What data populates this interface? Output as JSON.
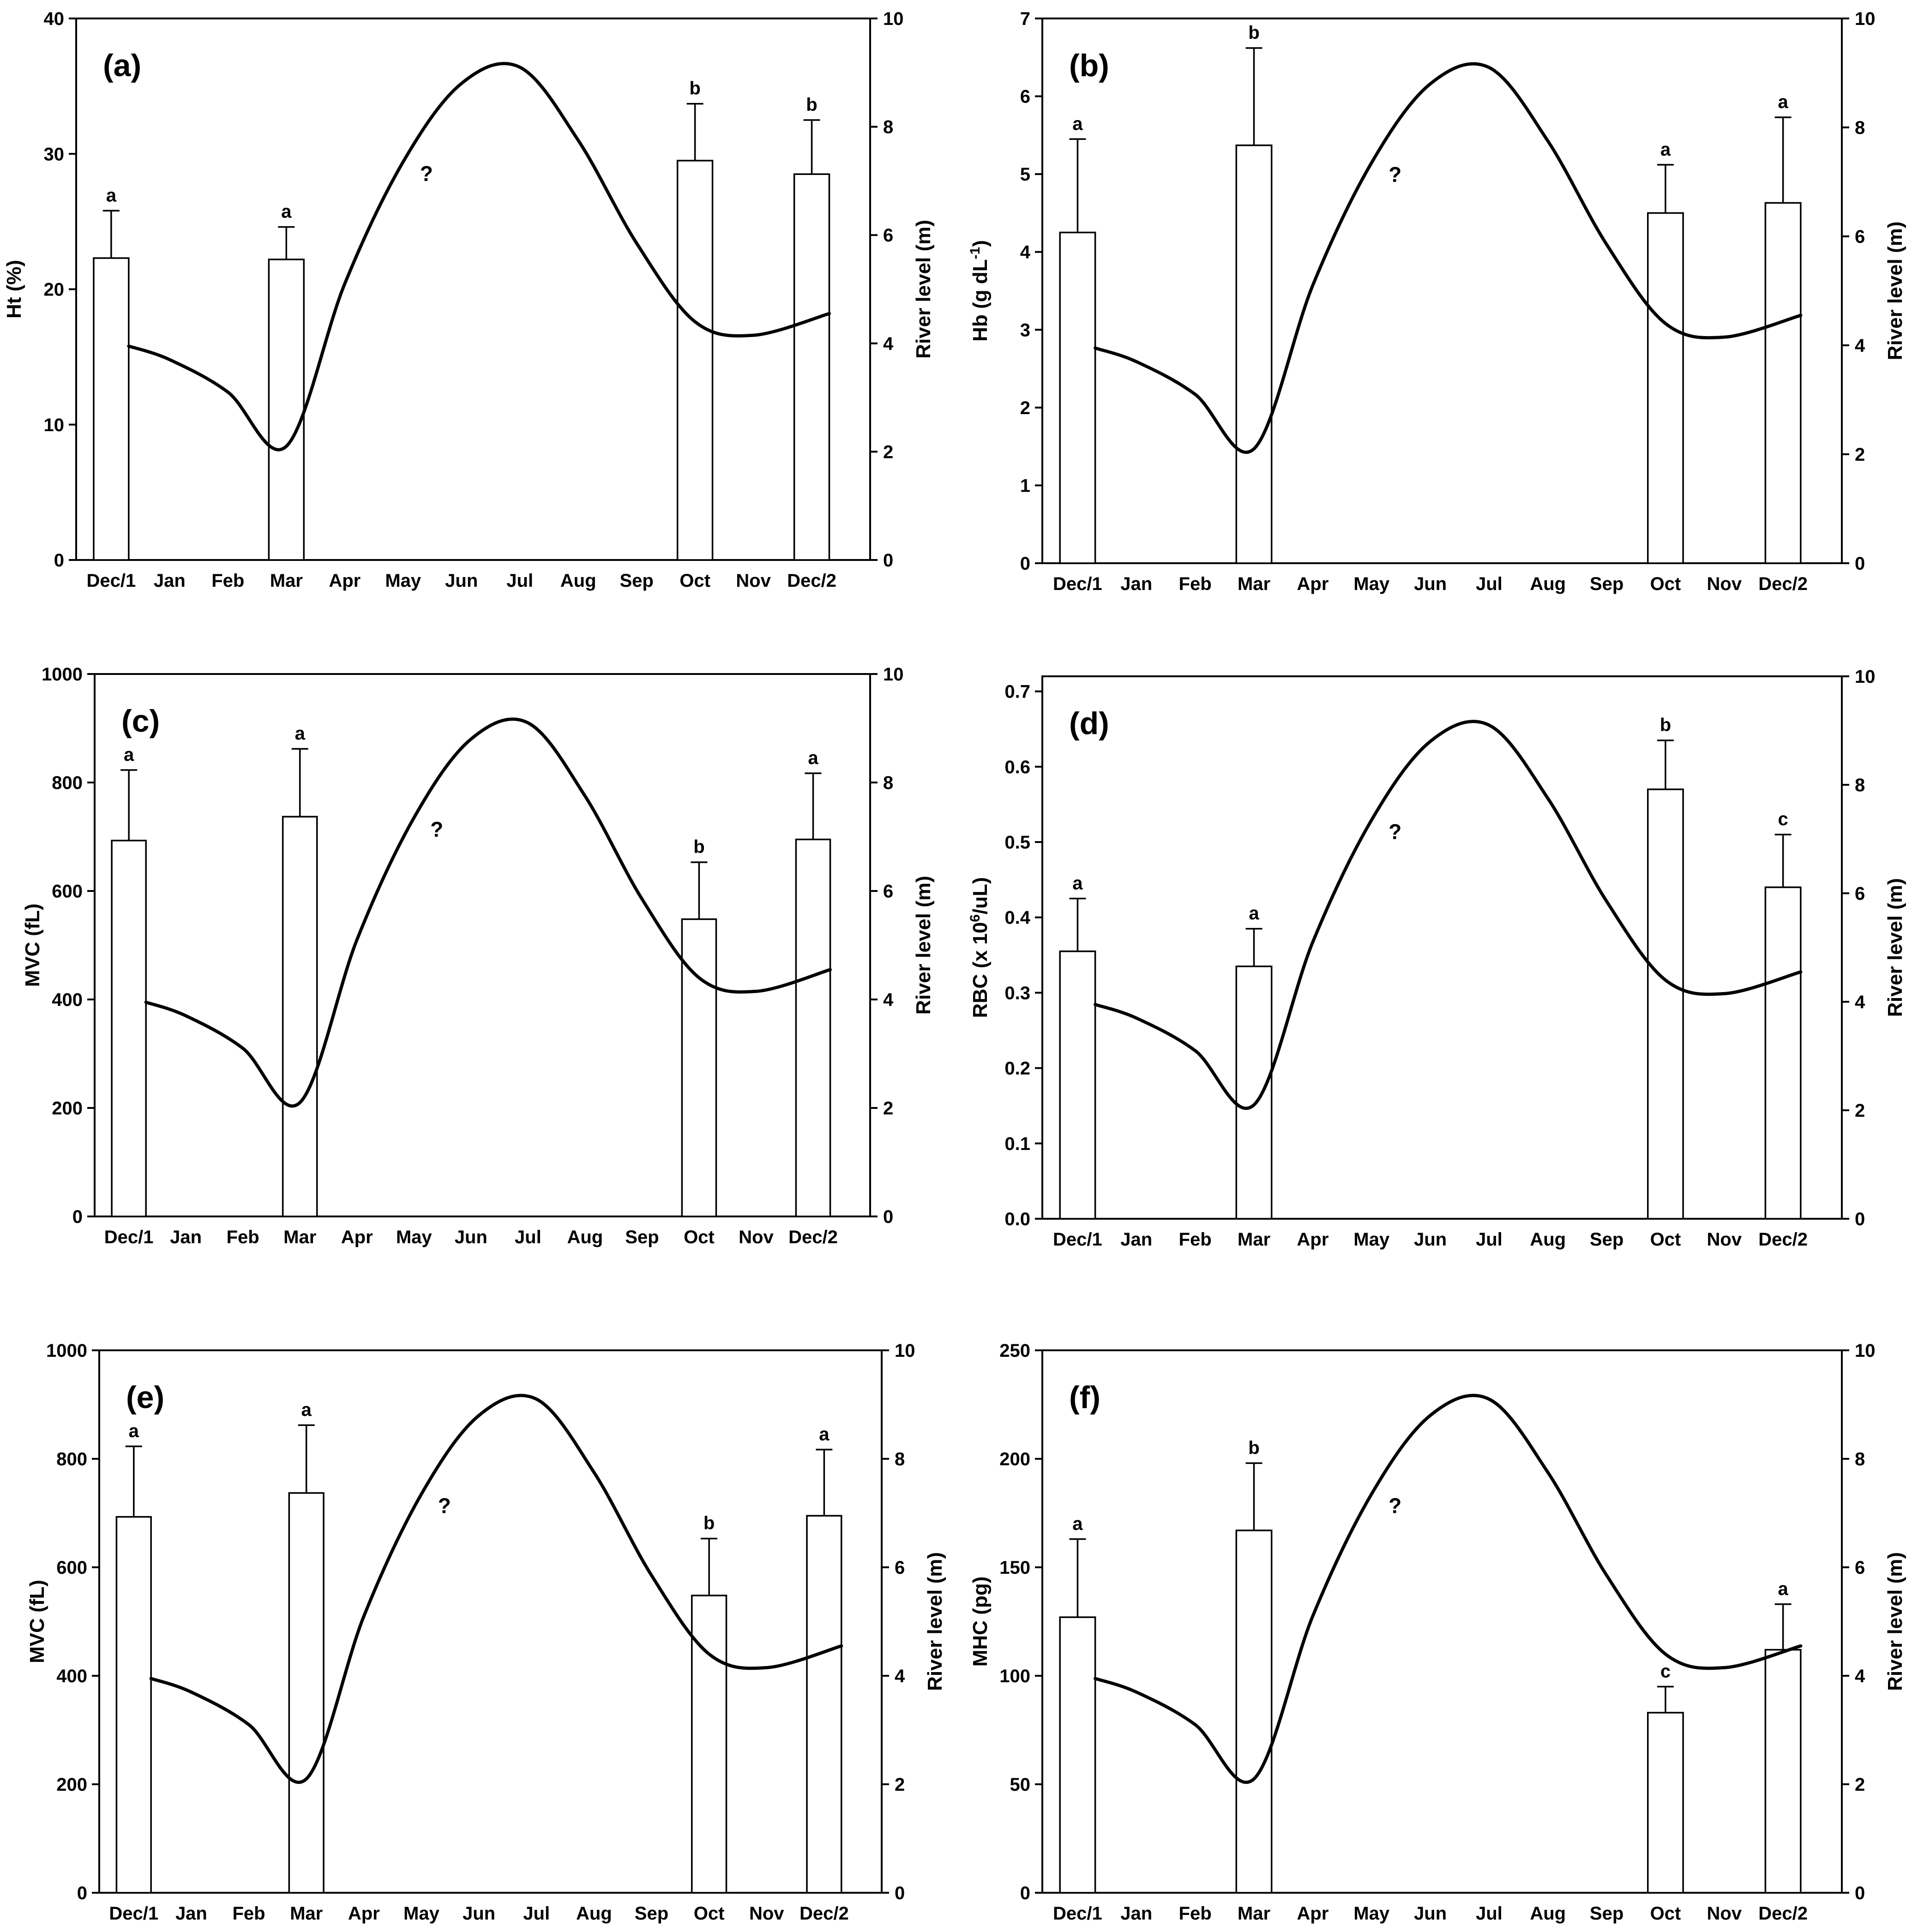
{
  "chart_data": [
    {
      "type": "bar",
      "panel_label": "(a)",
      "categories": [
        "Dec/1",
        "Jan",
        "Feb",
        "Mar",
        "Apr",
        "May",
        "Jun",
        "Jul",
        "Aug",
        "Sep",
        "Oct",
        "Nov",
        "Dec/2"
      ],
      "ylabel": "Ht (%)",
      "ylabel_sup": "",
      "ylabel_suffix": "",
      "ylim": [
        0,
        40
      ],
      "yticks": [
        0,
        10,
        20,
        30,
        40
      ],
      "ytick_labels": [
        "0",
        "10",
        "20",
        "30",
        "40"
      ],
      "y2label": "River level (m)",
      "y2lim": [
        0,
        10
      ],
      "y2ticks": [
        0,
        2,
        4,
        6,
        8,
        10
      ],
      "bars": [
        {
          "month": "Dec/1",
          "value": 22.3,
          "error": 3.5,
          "letter": "a"
        },
        {
          "month": "Mar",
          "value": 22.2,
          "error": 2.4,
          "letter": "a"
        },
        {
          "month": "Oct",
          "value": 29.5,
          "error": 4.2,
          "letter": "b"
        },
        {
          "month": "Dec/2",
          "value": 28.5,
          "error": 4.0,
          "letter": "b"
        }
      ],
      "river_level": {
        "x": [
          0.3,
          1,
          2,
          3,
          4,
          5,
          6,
          7,
          8,
          9,
          10,
          11,
          12.3
        ],
        "y": [
          3.95,
          3.7,
          3.1,
          2.1,
          5.1,
          7.35,
          8.8,
          9.1,
          7.75,
          5.85,
          4.4,
          4.15,
          4.55
        ]
      },
      "annotation": {
        "text": "?",
        "month_index": 5.4,
        "level": 7.0
      }
    },
    {
      "type": "bar",
      "panel_label": "(b)",
      "categories": [
        "Dec/1",
        "Jan",
        "Feb",
        "Mar",
        "Apr",
        "May",
        "Jun",
        "Jul",
        "Aug",
        "Sep",
        "Oct",
        "Nov",
        "Dec/2"
      ],
      "ylabel": "Hb (g dL",
      "ylabel_sup": "-1",
      "ylabel_suffix": ")",
      "ylim": [
        0,
        7
      ],
      "yticks": [
        0,
        1,
        2,
        3,
        4,
        5,
        6,
        7
      ],
      "ytick_labels": [
        "0",
        "1",
        "2",
        "3",
        "4",
        "5",
        "6",
        "7"
      ],
      "y2label": "River level (m)",
      "y2lim": [
        0,
        10
      ],
      "y2ticks": [
        0,
        2,
        4,
        6,
        8,
        10
      ],
      "bars": [
        {
          "month": "Dec/1",
          "value": 4.25,
          "error": 1.2,
          "letter": "a"
        },
        {
          "month": "Mar",
          "value": 5.37,
          "error": 1.25,
          "letter": "b"
        },
        {
          "month": "Oct",
          "value": 4.5,
          "error": 0.62,
          "letter": "a"
        },
        {
          "month": "Dec/2",
          "value": 4.63,
          "error": 1.1,
          "letter": "a"
        }
      ],
      "river_level": {
        "x": [
          0.3,
          1,
          2,
          3,
          4,
          5,
          6,
          7,
          8,
          9,
          10,
          11,
          12.3
        ],
        "y": [
          3.95,
          3.7,
          3.1,
          2.1,
          5.1,
          7.35,
          8.8,
          9.1,
          7.75,
          5.85,
          4.4,
          4.15,
          4.55
        ]
      },
      "annotation": {
        "text": "?",
        "month_index": 5.4,
        "level": 7.0
      }
    },
    {
      "type": "bar",
      "panel_label": "(c)",
      "categories": [
        "Dec/1",
        "Jan",
        "Feb",
        "Mar",
        "Apr",
        "May",
        "Jun",
        "Jul",
        "Aug",
        "Sep",
        "Oct",
        "Nov",
        "Dec/2"
      ],
      "ylabel": "MVC (fL)",
      "ylabel_sup": "",
      "ylabel_suffix": "",
      "ylim": [
        0,
        1000
      ],
      "yticks": [
        0,
        200,
        400,
        600,
        800,
        1000
      ],
      "ytick_labels": [
        "0",
        "200",
        "400",
        "600",
        "800",
        "1000"
      ],
      "y2label": "River level (m)",
      "y2lim": [
        0,
        10
      ],
      "y2ticks": [
        0,
        2,
        4,
        6,
        8,
        10
      ],
      "bars": [
        {
          "month": "Dec/1",
          "value": 693,
          "error": 130,
          "letter": "a"
        },
        {
          "month": "Mar",
          "value": 737,
          "error": 125,
          "letter": "a"
        },
        {
          "month": "Oct",
          "value": 548,
          "error": 105,
          "letter": "b"
        },
        {
          "month": "Dec/2",
          "value": 695,
          "error": 122,
          "letter": "a"
        }
      ],
      "river_level": {
        "x": [
          0.3,
          1,
          2,
          3,
          4,
          5,
          6,
          7,
          8,
          9,
          10,
          11,
          12.3
        ],
        "y": [
          3.95,
          3.7,
          3.1,
          2.1,
          5.1,
          7.35,
          8.8,
          9.1,
          7.75,
          5.85,
          4.4,
          4.15,
          4.55
        ]
      },
      "annotation": {
        "text": "?",
        "month_index": 5.4,
        "level": 7.0
      }
    },
    {
      "type": "bar",
      "panel_label": "(d)",
      "categories": [
        "Dec/1",
        "Jan",
        "Feb",
        "Mar",
        "Apr",
        "May",
        "Jun",
        "Jul",
        "Aug",
        "Sep",
        "Oct",
        "Nov",
        "Dec/2"
      ],
      "ylabel": "RBC (x 10",
      "ylabel_sup": "6",
      "ylabel_suffix": "/uL)",
      "ylim": [
        0,
        0.72
      ],
      "yticks": [
        0,
        0.1,
        0.2,
        0.3,
        0.4,
        0.5,
        0.6,
        0.7
      ],
      "ytick_labels": [
        "0.0",
        "0.1",
        "0.2",
        "0.3",
        "0.4",
        "0.5",
        "0.6",
        "0.7"
      ],
      "y2label": "River level (m)",
      "y2lim": [
        0,
        10
      ],
      "y2ticks": [
        0,
        2,
        4,
        6,
        8,
        10
      ],
      "bars": [
        {
          "month": "Dec/1",
          "value": 0.355,
          "error": 0.07,
          "letter": "a"
        },
        {
          "month": "Mar",
          "value": 0.335,
          "error": 0.05,
          "letter": "a"
        },
        {
          "month": "Oct",
          "value": 0.57,
          "error": 0.065,
          "letter": "b"
        },
        {
          "month": "Dec/2",
          "value": 0.44,
          "error": 0.07,
          "letter": "c"
        }
      ],
      "river_level": {
        "x": [
          0.3,
          1,
          2,
          3,
          4,
          5,
          6,
          7,
          8,
          9,
          10,
          11,
          12.3
        ],
        "y": [
          3.95,
          3.7,
          3.1,
          2.1,
          5.1,
          7.35,
          8.8,
          9.1,
          7.75,
          5.85,
          4.4,
          4.15,
          4.55
        ]
      },
      "annotation": {
        "text": "?",
        "month_index": 5.4,
        "level": 7.0
      }
    },
    {
      "type": "bar",
      "panel_label": "(e)",
      "categories": [
        "Dec/1",
        "Jan",
        "Feb",
        "Mar",
        "Apr",
        "May",
        "Jun",
        "Jul",
        "Aug",
        "Sep",
        "Oct",
        "Nov",
        "Dec/2"
      ],
      "ylabel": "MVC (fL)",
      "ylabel_sup": "",
      "ylabel_suffix": "",
      "ylim": [
        0,
        1000
      ],
      "yticks": [
        0,
        200,
        400,
        600,
        800,
        1000
      ],
      "ytick_labels": [
        "0",
        "200",
        "400",
        "600",
        "800",
        "1000"
      ],
      "y2label": "River level (m)",
      "y2lim": [
        0,
        10
      ],
      "y2ticks": [
        0,
        2,
        4,
        6,
        8,
        10
      ],
      "bars": [
        {
          "month": "Dec/1",
          "value": 693,
          "error": 130,
          "letter": "a"
        },
        {
          "month": "Mar",
          "value": 737,
          "error": 125,
          "letter": "a"
        },
        {
          "month": "Oct",
          "value": 548,
          "error": 105,
          "letter": "b"
        },
        {
          "month": "Dec/2",
          "value": 695,
          "error": 122,
          "letter": "a"
        }
      ],
      "river_level": {
        "x": [
          0.3,
          1,
          2,
          3,
          4,
          5,
          6,
          7,
          8,
          9,
          10,
          11,
          12.3
        ],
        "y": [
          3.95,
          3.7,
          3.1,
          2.1,
          5.1,
          7.35,
          8.8,
          9.1,
          7.75,
          5.85,
          4.4,
          4.15,
          4.55
        ]
      },
      "annotation": {
        "text": "?",
        "month_index": 5.4,
        "level": 7.0
      }
    },
    {
      "type": "bar",
      "panel_label": "(f)",
      "categories": [
        "Dec/1",
        "Jan",
        "Feb",
        "Mar",
        "Apr",
        "May",
        "Jun",
        "Jul",
        "Aug",
        "Sep",
        "Oct",
        "Nov",
        "Dec/2"
      ],
      "ylabel": "MHC (pg)",
      "ylabel_sup": "",
      "ylabel_suffix": "",
      "ylim": [
        0,
        250
      ],
      "yticks": [
        0,
        50,
        100,
        150,
        200,
        250
      ],
      "ytick_labels": [
        "0",
        "50",
        "100",
        "150",
        "200",
        "250"
      ],
      "y2label": "River level (m)",
      "y2lim": [
        0,
        10
      ],
      "y2ticks": [
        0,
        2,
        4,
        6,
        8,
        10
      ],
      "bars": [
        {
          "month": "Dec/1",
          "value": 127,
          "error": 36,
          "letter": "a"
        },
        {
          "month": "Mar",
          "value": 167,
          "error": 31,
          "letter": "b"
        },
        {
          "month": "Oct",
          "value": 83,
          "error": 12,
          "letter": "c"
        },
        {
          "month": "Dec/2",
          "value": 112,
          "error": 21,
          "letter": "a"
        }
      ],
      "river_level": {
        "x": [
          0.3,
          1,
          2,
          3,
          4,
          5,
          6,
          7,
          8,
          9,
          10,
          11,
          12.3
        ],
        "y": [
          3.95,
          3.7,
          3.1,
          2.1,
          5.1,
          7.35,
          8.8,
          9.1,
          7.75,
          5.85,
          4.4,
          4.15,
          4.55
        ]
      },
      "annotation": {
        "text": "?",
        "month_index": 5.4,
        "level": 7.0
      }
    }
  ]
}
